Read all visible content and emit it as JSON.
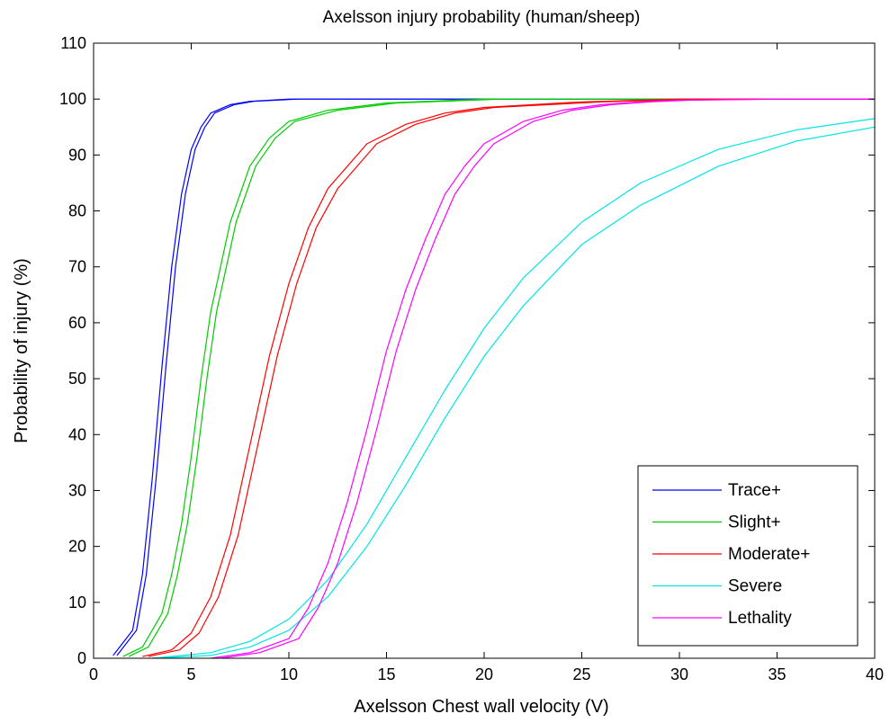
{
  "chart_data": {
    "type": "line",
    "title": "Axelsson injury probability (human/sheep)",
    "xlabel": "Axelsson Chest wall velocity (V)",
    "ylabel": "Probability of injury (%)",
    "xlim": [
      0,
      40
    ],
    "ylim": [
      0,
      110
    ],
    "xticks": [
      0,
      5,
      10,
      15,
      20,
      25,
      30,
      35,
      40
    ],
    "yticks": [
      0,
      10,
      20,
      30,
      40,
      50,
      60,
      70,
      80,
      90,
      100,
      110
    ],
    "grid": false,
    "legend_position": "bottom-right",
    "colors": {
      "Trace+": "#0000ff",
      "Slight+": "#00cc00",
      "Moderate+": "#ff0000",
      "Severe": "#00e5e5",
      "Lethality": "#ff00ff"
    },
    "legend": [
      "Trace+",
      "Slight+",
      "Moderate+",
      "Severe",
      "Lethality"
    ],
    "series": [
      {
        "name": "Trace+",
        "band": "upper",
        "x": [
          1,
          2,
          2.5,
          3,
          3.5,
          4,
          4.5,
          5,
          5.5,
          6,
          7,
          8,
          10,
          40
        ],
        "y": [
          0.5,
          5,
          15,
          32,
          52,
          70,
          83,
          91,
          95,
          97.5,
          99,
          99.6,
          100,
          100
        ]
      },
      {
        "name": "Trace+",
        "band": "lower",
        "x": [
          1.2,
          2.2,
          2.7,
          3.2,
          3.7,
          4.2,
          4.7,
          5.2,
          5.7,
          6.2,
          7.2,
          8.2,
          10.5,
          40
        ],
        "y": [
          0.5,
          5,
          15,
          32,
          52,
          70,
          83,
          91,
          95,
          97.5,
          99,
          99.6,
          100,
          100
        ]
      },
      {
        "name": "Slight+",
        "band": "upper",
        "x": [
          1.5,
          2.5,
          3.5,
          4,
          4.5,
          5,
          5.5,
          6,
          7,
          8,
          9,
          10,
          12,
          15,
          20,
          40
        ],
        "y": [
          0.3,
          2,
          8,
          15,
          24,
          36,
          50,
          62,
          78,
          88,
          93,
          96,
          98,
          99.3,
          100,
          100
        ]
      },
      {
        "name": "Slight+",
        "band": "lower",
        "x": [
          1.8,
          2.8,
          3.8,
          4.3,
          4.8,
          5.3,
          5.8,
          6.3,
          7.3,
          8.3,
          9.3,
          10.3,
          12.5,
          15.5,
          21,
          40
        ],
        "y": [
          0.3,
          2,
          8,
          15,
          24,
          36,
          50,
          62,
          78,
          88,
          93,
          96,
          98,
          99.3,
          100,
          100
        ]
      },
      {
        "name": "Moderate+",
        "band": "upper",
        "x": [
          2.5,
          4,
          5,
          6,
          7,
          8,
          9,
          10,
          11,
          12,
          14,
          16,
          18,
          20,
          25,
          30,
          40
        ],
        "y": [
          0.3,
          1.5,
          4.5,
          11,
          22,
          38,
          54,
          67,
          77,
          84,
          92,
          95.5,
          97.5,
          98.5,
          99.5,
          100,
          100
        ]
      },
      {
        "name": "Moderate+",
        "band": "lower",
        "x": [
          2.8,
          4.4,
          5.4,
          6.4,
          7.4,
          8.4,
          9.4,
          10.4,
          11.4,
          12.5,
          14.5,
          16.5,
          18.5,
          20.5,
          26,
          31,
          40
        ],
        "y": [
          0.3,
          1.5,
          4.5,
          11,
          22,
          38,
          54,
          67,
          77,
          84,
          92,
          95.5,
          97.5,
          98.5,
          99.5,
          100,
          100
        ]
      },
      {
        "name": "Severe",
        "band": "upper",
        "x": [
          3,
          6,
          8,
          10,
          12,
          14,
          16,
          18,
          20,
          22,
          25,
          28,
          32,
          36,
          40
        ],
        "y": [
          0,
          1,
          3,
          7,
          14,
          24,
          36,
          48,
          59,
          68,
          78,
          85,
          91,
          94.5,
          96.5
        ]
      },
      {
        "name": "Severe",
        "band": "lower",
        "x": [
          3,
          6,
          8,
          10,
          12,
          14,
          16,
          18,
          20,
          22,
          25,
          28,
          32,
          36,
          40
        ],
        "y": [
          0,
          0.5,
          2,
          5,
          11,
          20,
          31,
          43,
          54,
          63,
          74,
          81,
          88,
          92.5,
          95
        ]
      },
      {
        "name": "Lethality",
        "band": "upper",
        "x": [
          6,
          8,
          10,
          11,
          12,
          13,
          14,
          15,
          16,
          17,
          18,
          19,
          20,
          22,
          24,
          26,
          28,
          30,
          35,
          40
        ],
        "y": [
          0,
          1,
          3.5,
          9,
          17,
          28,
          41,
          55,
          66,
          75,
          83,
          88,
          92,
          96,
          98,
          99,
          99.5,
          99.8,
          100,
          100
        ]
      },
      {
        "name": "Lethality",
        "band": "lower",
        "x": [
          6.5,
          8.5,
          10.5,
          11.5,
          12.5,
          13.5,
          14.5,
          15.5,
          16.5,
          17.5,
          18.5,
          19.5,
          20.5,
          22.5,
          24.5,
          26.5,
          28.5,
          30.5,
          35.5,
          40
        ],
        "y": [
          0,
          1,
          3.5,
          9,
          17,
          28,
          41,
          55,
          66,
          75,
          83,
          88,
          92,
          96,
          98,
          99,
          99.5,
          99.8,
          100,
          100
        ]
      }
    ]
  }
}
